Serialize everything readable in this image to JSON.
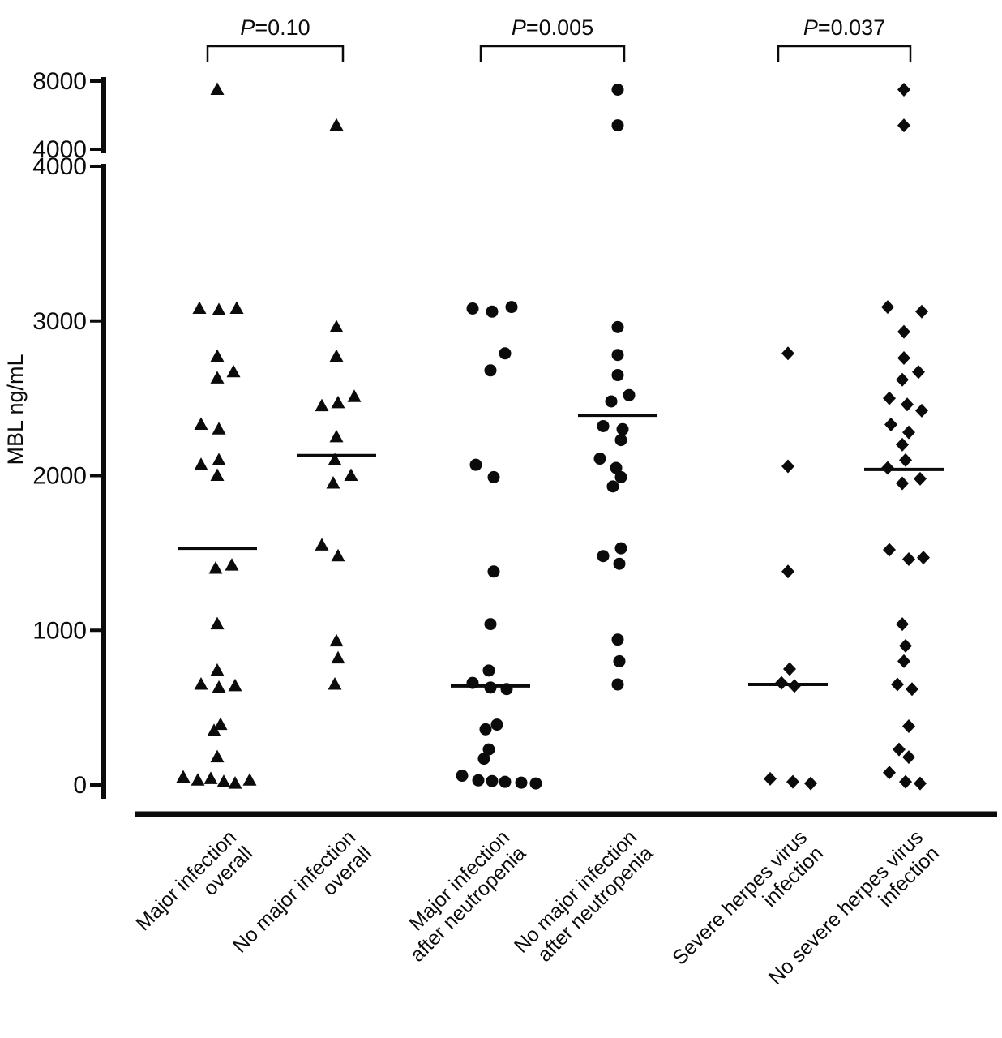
{
  "figure_title": "",
  "chart_data": {
    "type": "scatter",
    "title": "",
    "xlabel": "",
    "ylabel": "MBL ng/mL",
    "legend": "none",
    "grid": false,
    "y_axis": {
      "label": "MBL ng/mL",
      "broken": true,
      "top_segment": {
        "range": [
          4000,
          8000
        ],
        "ticks": [
          8000,
          4000
        ]
      },
      "main_segment": {
        "range": [
          0,
          4000
        ],
        "ticks": [
          4000,
          3000,
          2000,
          1000,
          0
        ]
      }
    },
    "comparisons": [
      {
        "label": "P=0.10",
        "between": [
          0,
          1
        ]
      },
      {
        "label": "P=0.005",
        "between": [
          2,
          3
        ]
      },
      {
        "label": "P=0.037",
        "between": [
          4,
          5
        ]
      }
    ],
    "groups": [
      {
        "name": "Major infection overall",
        "label_lines": [
          "Major infection",
          "overall"
        ],
        "marker": "triangle",
        "median": 1530,
        "points": [
          [
            7500,
            0
          ],
          [
            3080,
            -22
          ],
          [
            3070,
            2
          ],
          [
            3080,
            24
          ],
          [
            2770,
            0
          ],
          [
            2670,
            20
          ],
          [
            2630,
            0
          ],
          [
            2330,
            -20
          ],
          [
            2300,
            2
          ],
          [
            2100,
            2
          ],
          [
            2070,
            -20
          ],
          [
            2000,
            0
          ],
          [
            1420,
            18
          ],
          [
            1400,
            -2
          ],
          [
            1040,
            0
          ],
          [
            740,
            0
          ],
          [
            650,
            -20
          ],
          [
            630,
            2
          ],
          [
            640,
            22
          ],
          [
            390,
            4
          ],
          [
            350,
            -4
          ],
          [
            180,
            0
          ],
          [
            50,
            -42
          ],
          [
            30,
            -24
          ],
          [
            40,
            -8
          ],
          [
            20,
            8
          ],
          [
            10,
            22
          ],
          [
            30,
            40
          ]
        ]
      },
      {
        "name": "No major infection overall",
        "label_lines": [
          "No major infection",
          "overall"
        ],
        "marker": "triangle",
        "median": 2130,
        "points": [
          [
            5400,
            0
          ],
          [
            2960,
            0
          ],
          [
            2770,
            0
          ],
          [
            2510,
            22
          ],
          [
            2450,
            -18
          ],
          [
            2470,
            2
          ],
          [
            2250,
            0
          ],
          [
            2100,
            -2
          ],
          [
            2000,
            18
          ],
          [
            1950,
            -4
          ],
          [
            1550,
            -18
          ],
          [
            1480,
            2
          ],
          [
            930,
            0
          ],
          [
            820,
            2
          ],
          [
            650,
            -2
          ]
        ]
      },
      {
        "name": "Major infection after neutropenia",
        "label_lines": [
          "Major infection",
          "after neutropenia"
        ],
        "marker": "circle",
        "median": 640,
        "points": [
          [
            3080,
            -22
          ],
          [
            3060,
            2
          ],
          [
            3090,
            26
          ],
          [
            2790,
            18
          ],
          [
            2680,
            0
          ],
          [
            2070,
            -18
          ],
          [
            1990,
            4
          ],
          [
            1380,
            4
          ],
          [
            1040,
            0
          ],
          [
            740,
            -2
          ],
          [
            660,
            -22
          ],
          [
            630,
            0
          ],
          [
            620,
            20
          ],
          [
            390,
            8
          ],
          [
            360,
            -6
          ],
          [
            230,
            -2
          ],
          [
            170,
            -8
          ],
          [
            60,
            -35
          ],
          [
            30,
            -15
          ],
          [
            25,
            2
          ],
          [
            20,
            18
          ],
          [
            15,
            38
          ],
          [
            10,
            56
          ]
        ]
      },
      {
        "name": "No major infection after neutropenia",
        "label_lines": [
          "No major infection",
          "after neutropenia"
        ],
        "marker": "circle",
        "median": 2390,
        "points": [
          [
            7500,
            0
          ],
          [
            5400,
            0
          ],
          [
            2960,
            0
          ],
          [
            2780,
            0
          ],
          [
            2650,
            0
          ],
          [
            2520,
            14
          ],
          [
            2480,
            -8
          ],
          [
            2320,
            -18
          ],
          [
            2300,
            6
          ],
          [
            2230,
            4
          ],
          [
            2110,
            -22
          ],
          [
            2050,
            -2
          ],
          [
            1990,
            4
          ],
          [
            1930,
            -6
          ],
          [
            1530,
            4
          ],
          [
            1480,
            -18
          ],
          [
            1430,
            2
          ],
          [
            940,
            0
          ],
          [
            800,
            2
          ],
          [
            650,
            0
          ]
        ]
      },
      {
        "name": "Severe herpes virus infection",
        "label_lines": [
          "Severe herpes virus",
          "infection"
        ],
        "marker": "diamond",
        "median": 650,
        "points": [
          [
            2790,
            0
          ],
          [
            2060,
            0
          ],
          [
            1380,
            0
          ],
          [
            750,
            2
          ],
          [
            660,
            -8
          ],
          [
            640,
            8
          ],
          [
            40,
            -22
          ],
          [
            20,
            6
          ],
          [
            10,
            28
          ]
        ]
      },
      {
        "name": "No severe herpes virus infection",
        "label_lines": [
          "No severe herpes virus",
          "infection"
        ],
        "marker": "diamond",
        "median": 2040,
        "points": [
          [
            7500,
            0
          ],
          [
            5400,
            0
          ],
          [
            3090,
            -20
          ],
          [
            3060,
            22
          ],
          [
            2930,
            0
          ],
          [
            2760,
            0
          ],
          [
            2670,
            18
          ],
          [
            2620,
            -2
          ],
          [
            2500,
            -18
          ],
          [
            2460,
            4
          ],
          [
            2420,
            22
          ],
          [
            2330,
            -16
          ],
          [
            2280,
            6
          ],
          [
            2200,
            -2
          ],
          [
            2100,
            2
          ],
          [
            2050,
            -20
          ],
          [
            1980,
            20
          ],
          [
            1950,
            -2
          ],
          [
            1520,
            -18
          ],
          [
            1460,
            6
          ],
          [
            1470,
            24
          ],
          [
            1040,
            -2
          ],
          [
            900,
            2
          ],
          [
            800,
            0
          ],
          [
            650,
            -8
          ],
          [
            620,
            10
          ],
          [
            380,
            6
          ],
          [
            230,
            -6
          ],
          [
            180,
            6
          ],
          [
            80,
            -18
          ],
          [
            20,
            2
          ],
          [
            10,
            20
          ]
        ]
      }
    ],
    "colors": {
      "marker": "#0b0b0b",
      "axis": "#0b0b0b",
      "median_line": "#0b0b0b"
    }
  }
}
